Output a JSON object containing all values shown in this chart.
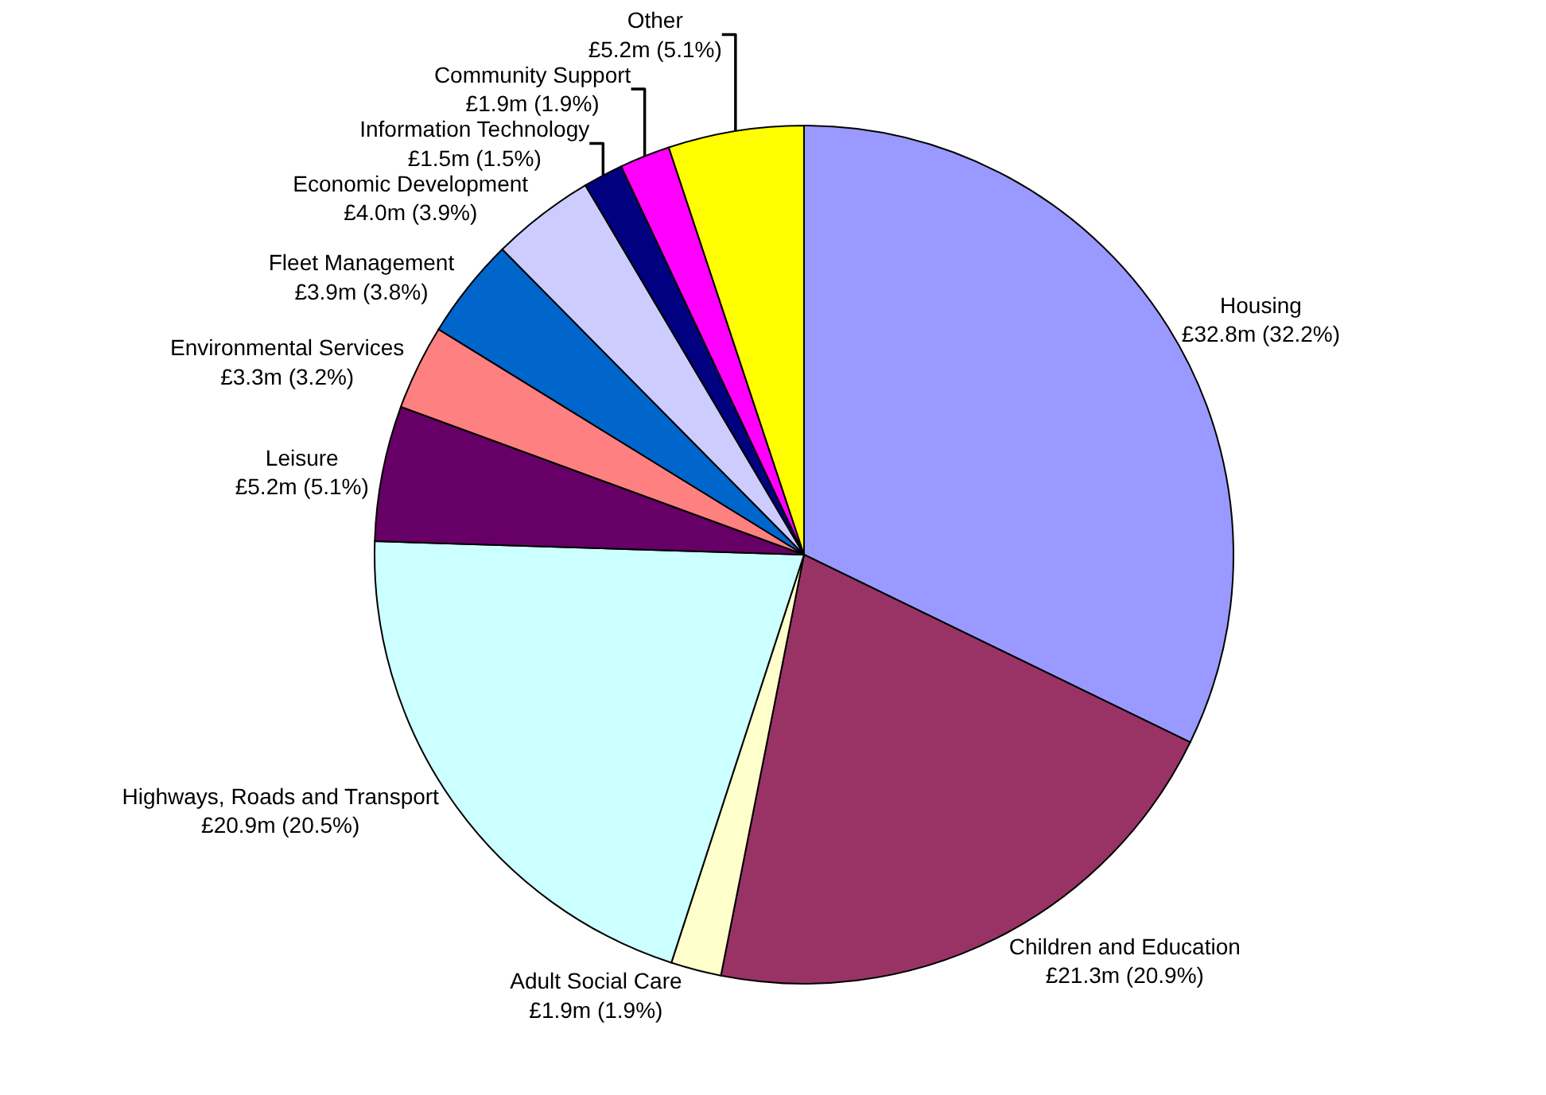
{
  "chart_data": {
    "type": "pie",
    "categories": [
      "Housing",
      "Children and Education",
      "Adult Social Care",
      "Highways, Roads and Transport",
      "Leisure",
      "Environmental Services",
      "Fleet Management",
      "Economic Development",
      "Information Technology",
      "Community Support",
      "Other"
    ],
    "values": [
      32.2,
      20.9,
      1.9,
      20.5,
      5.1,
      3.2,
      3.8,
      3.9,
      1.5,
      1.9,
      5.1
    ],
    "value_labels": [
      "£32.8m (32.2%)",
      "£21.3m (20.9%)",
      "£1.9m (1.9%)",
      "£20.9m (20.5%)",
      "£5.2m (5.1%)",
      "£3.3m (3.2%)",
      "£3.9m (3.8%)",
      "£4.0m (3.9%)",
      "£1.5m (1.5%)",
      "£1.9m (1.9%)",
      "£5.2m (5.1%)"
    ],
    "colors": [
      "#9999ff",
      "#993366",
      "#ffffcc",
      "#ccffff",
      "#660066",
      "#ff8080",
      "#0066cc",
      "#ccccff",
      "#000080",
      "#ff00ff",
      "#ffff00"
    ],
    "legend": false
  }
}
